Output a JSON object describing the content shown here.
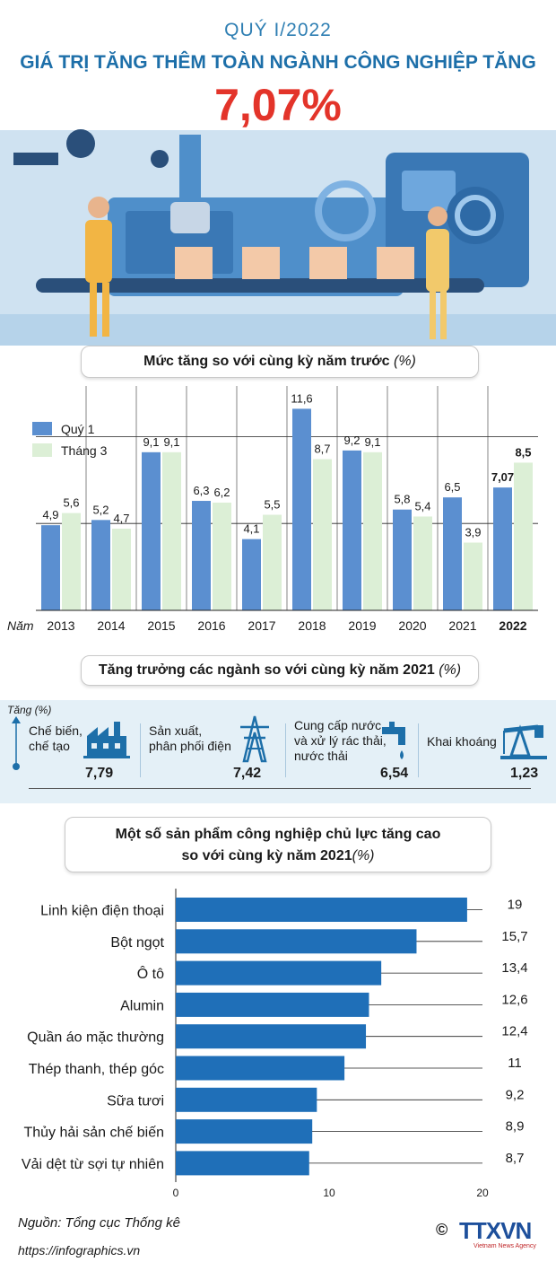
{
  "header": {
    "period": "QUÝ I/2022",
    "title": "GIÁ TRỊ TĂNG THÊM TOÀN NGÀNH CÔNG NGHIỆP TĂNG",
    "highlight": "7,07%"
  },
  "section1": {
    "title": "Mức tăng so với cùng kỳ năm trước",
    "unit": "(%)"
  },
  "section2": {
    "title": "Tăng trưởng các ngành so với cùng kỳ năm 2021",
    "unit": "(%)"
  },
  "section3": {
    "title_line1": "Một số sản phẩm công nghiệp chủ lực tăng cao",
    "title_line2": "so với cùng kỳ năm 2021",
    "unit": "(%)"
  },
  "industries": {
    "axis_label": "Tăng (%)",
    "items": [
      {
        "label_lines": [
          "Chế biến,",
          "chế tạo"
        ],
        "value": "7,79",
        "icon": "factory-icon"
      },
      {
        "label_lines": [
          "Sản xuất,",
          "phân phối điện"
        ],
        "value": "7,42",
        "icon": "power-tower-icon"
      },
      {
        "label_lines": [
          "Cung cấp nước",
          "và xử lý rác thải,",
          "nước thải"
        ],
        "value": "6,54",
        "icon": "water-tap-icon"
      },
      {
        "label_lines": [
          "Khai khoáng"
        ],
        "value": "1,23",
        "icon": "oil-pump-icon"
      }
    ]
  },
  "colors": {
    "q1": "#5b8fd0",
    "march": "#dcefd6",
    "bar_blue": "#1f6fb8",
    "title_blue": "#1d6fa9",
    "accent_red": "#e3342a"
  },
  "chart_data": [
    {
      "type": "bar",
      "title": "Mức tăng so với cùng kỳ năm trước (%)",
      "xlabel": "Năm",
      "categories": [
        "2013",
        "2014",
        "2015",
        "2016",
        "2017",
        "2018",
        "2019",
        "2020",
        "2021",
        "2022"
      ],
      "series": [
        {
          "name": "Quý 1",
          "values": [
            4.9,
            5.2,
            9.1,
            6.3,
            4.1,
            11.6,
            9.2,
            5.8,
            6.5,
            7.07
          ],
          "labels": [
            "4,9",
            "5,2",
            "9,1",
            "6,3",
            "4,1",
            "11,6",
            "9,2",
            "5,8",
            "6,5",
            "7,07"
          ]
        },
        {
          "name": "Tháng 3",
          "values": [
            5.6,
            4.7,
            9.1,
            6.2,
            5.5,
            8.7,
            9.1,
            5.4,
            3.9,
            8.5
          ],
          "labels": [
            "5,6",
            "4,7",
            "9,1",
            "6,2",
            "5,5",
            "8,7",
            "9,1",
            "5,4",
            "3,9",
            "8,5"
          ]
        }
      ],
      "ylim": [
        0,
        12.5
      ],
      "grid": true,
      "legend": "top-left"
    },
    {
      "type": "bar",
      "orientation": "horizontal",
      "title": "Một số sản phẩm công nghiệp chủ lực tăng cao so với cùng kỳ năm 2021 (%)",
      "categories": [
        "Linh kiện điện thoại",
        "Bột ngọt",
        "Ô tô",
        "Alumin",
        "Quần áo mặc thường",
        "Thép thanh, thép góc",
        "Sữa tươi",
        "Thủy hải sản chế biến",
        "Vải dệt từ sợi tự nhiên"
      ],
      "values": [
        19,
        15.7,
        13.4,
        12.6,
        12.4,
        11,
        9.2,
        8.9,
        8.7
      ],
      "labels": [
        "19",
        "15,7",
        "13,4",
        "12,6",
        "12,4",
        "11",
        "9,2",
        "8,9",
        "8,7"
      ],
      "xlim": [
        0,
        20
      ],
      "xticks": [
        "0",
        "10",
        "20"
      ]
    }
  ],
  "footer": {
    "source": "Nguồn: Tổng cục Thống kê",
    "url": "https://infographics.vn",
    "copyright": "©",
    "logo": "TTXVN",
    "logo_sub": "Vietnam News Agency"
  }
}
